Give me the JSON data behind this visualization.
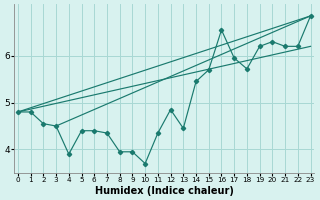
{
  "xlabel": "Humidex (Indice chaleur)",
  "background_color": "#d8f2ef",
  "grid_color": "#a8d8d4",
  "line_color": "#1a7a6e",
  "x_data": [
    0,
    1,
    2,
    3,
    4,
    5,
    6,
    7,
    8,
    9,
    10,
    11,
    12,
    13,
    14,
    15,
    16,
    17,
    18,
    19,
    20,
    21,
    22,
    23
  ],
  "y_data": [
    4.8,
    4.8,
    4.55,
    4.5,
    3.9,
    4.4,
    4.4,
    4.35,
    3.95,
    3.95,
    3.7,
    4.35,
    4.85,
    4.45,
    5.45,
    5.7,
    6.55,
    5.95,
    5.72,
    6.2,
    6.3,
    6.2,
    6.2,
    6.85
  ],
  "straight_lines": [
    {
      "x0": 0,
      "y0": 4.8,
      "x1": 23,
      "y1": 6.85
    },
    {
      "x0": 0,
      "y0": 4.8,
      "x1": 23,
      "y1": 6.2
    },
    {
      "x0": 3,
      "y0": 4.5,
      "x1": 23,
      "y1": 6.85
    }
  ],
  "ylim": [
    3.5,
    7.1
  ],
  "yticks": [
    4,
    5,
    6
  ],
  "xticks": [
    0,
    1,
    2,
    3,
    4,
    5,
    6,
    7,
    8,
    9,
    10,
    11,
    12,
    13,
    14,
    15,
    16,
    17,
    18,
    19,
    20,
    21,
    22,
    23
  ],
  "xlim": [
    -0.3,
    23.3
  ]
}
